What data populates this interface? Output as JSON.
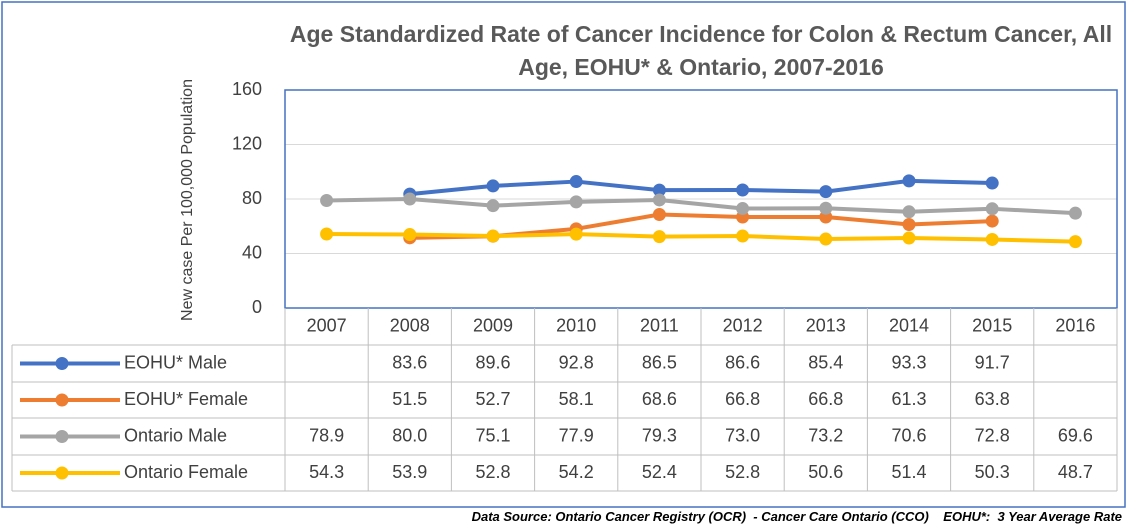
{
  "chart_data": {
    "type": "line",
    "title": "Age Standardized Rate of Cancer Incidence for Colon & Rectum Cancer, All Age, EOHU* & Ontario, 2007-2016",
    "y_label": "New case Per 100,000 Population",
    "source": "Data Source: Ontario Cancer Registry (OCR)  - Cancer Care Ontario (CCO)    EOHU*:  3 Year Average Rate",
    "categories": [
      "2007",
      "2008",
      "2009",
      "2010",
      "2011",
      "2012",
      "2013",
      "2014",
      "2015",
      "2016"
    ],
    "series": [
      {
        "name": "EOHU* Male",
        "color": "#4472c4",
        "values": [
          null,
          83.6,
          89.6,
          92.8,
          86.5,
          86.6,
          85.4,
          93.3,
          91.7,
          null
        ],
        "value_labels": [
          null,
          "83.6",
          "89.6",
          "92.8",
          "86.5",
          "86.6",
          "85.4",
          "93.3",
          "91.7",
          null
        ]
      },
      {
        "name": "EOHU* Female",
        "color": "#ed7d31",
        "values": [
          null,
          51.5,
          52.7,
          58.1,
          68.6,
          66.8,
          66.8,
          61.3,
          63.8,
          null
        ],
        "value_labels": [
          null,
          "51.5",
          "52.7",
          "58.1",
          "68.6",
          "66.8",
          "66.8",
          "61.3",
          "63.8",
          null
        ]
      },
      {
        "name": "Ontario Male",
        "color": "#a5a5a5",
        "values": [
          78.9,
          80.0,
          75.1,
          77.9,
          79.3,
          73.0,
          73.2,
          70.6,
          72.8,
          69.6
        ],
        "value_labels": [
          "78.9",
          "80.0",
          "75.1",
          "77.9",
          "79.3",
          "73.0",
          "73.2",
          "70.6",
          "72.8",
          "69.6"
        ]
      },
      {
        "name": "Ontario Female",
        "color": "#ffc000",
        "values": [
          54.3,
          53.9,
          52.8,
          54.2,
          52.4,
          52.8,
          50.6,
          51.4,
          50.3,
          48.7
        ],
        "value_labels": [
          "54.3",
          "53.9",
          "52.8",
          "54.2",
          "52.4",
          "52.8",
          "50.6",
          "51.4",
          "50.3",
          "48.7"
        ]
      }
    ],
    "ylim": [
      0,
      160
    ],
    "yticks": [
      0,
      40,
      80,
      120,
      160
    ],
    "grid": true
  }
}
